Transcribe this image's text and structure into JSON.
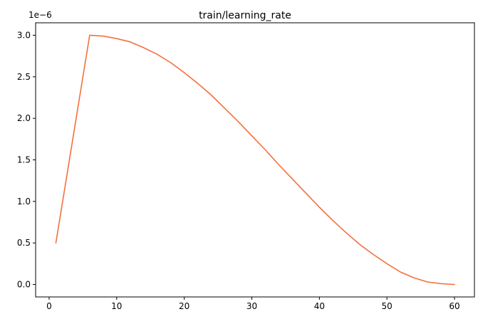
{
  "chart_data": {
    "type": "line",
    "title": "train/learning_rate",
    "xlabel": "",
    "ylabel": "",
    "y_offset_label": "1e−6",
    "xlim": [
      -2.0,
      62.95
    ],
    "ylim": [
      -0.15,
      3.15
    ],
    "x_ticks": [
      0,
      10,
      20,
      30,
      40,
      50,
      60
    ],
    "x_tick_labels": [
      "0",
      "10",
      "20",
      "30",
      "40",
      "50",
      "60"
    ],
    "y_ticks": [
      0.0,
      0.5,
      1.0,
      1.5,
      2.0,
      2.5,
      3.0
    ],
    "y_tick_labels": [
      "0.0",
      "0.5",
      "1.0",
      "1.5",
      "2.0",
      "2.5",
      "3.0"
    ],
    "grid": false,
    "legend": "none",
    "series": [
      {
        "color": "#f4703e",
        "x": [
          1,
          6,
          8,
          10,
          12,
          14,
          16,
          18,
          20,
          22,
          24,
          26,
          28,
          30,
          32,
          34,
          36,
          38,
          40,
          42,
          44,
          46,
          48,
          50,
          52,
          54,
          56,
          58,
          60
        ],
        "y": [
          0.5,
          3.0,
          2.99,
          2.96,
          2.92,
          2.85,
          2.77,
          2.67,
          2.55,
          2.42,
          2.28,
          2.12,
          1.96,
          1.79,
          1.62,
          1.44,
          1.27,
          1.1,
          0.93,
          0.77,
          0.62,
          0.48,
          0.36,
          0.25,
          0.15,
          0.08,
          0.03,
          0.01,
          0.0
        ]
      }
    ]
  }
}
